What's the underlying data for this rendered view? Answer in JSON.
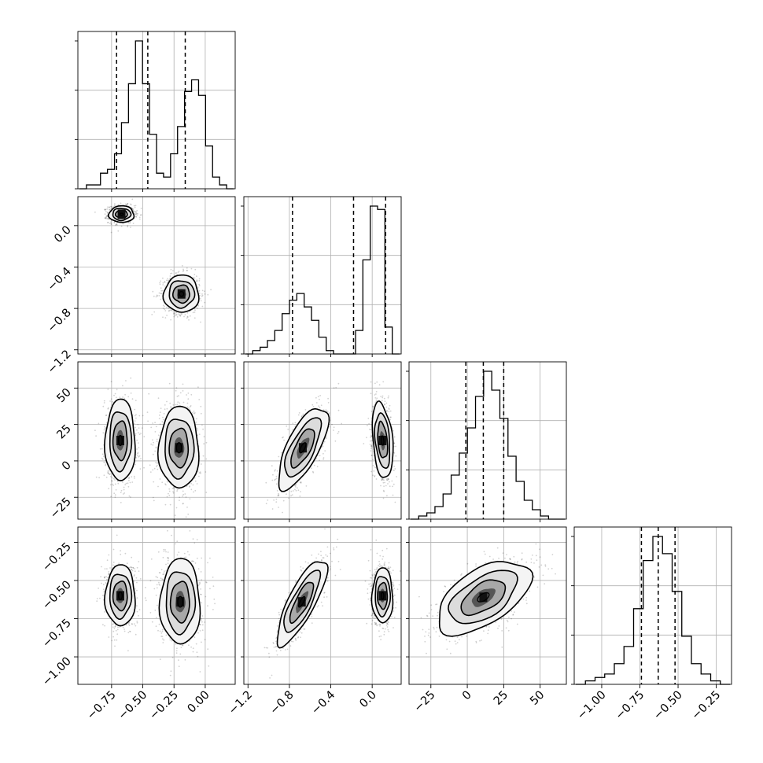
{
  "chart_data": {
    "type": "corner",
    "grid": true,
    "parameters": [
      {
        "ticks": [
          -0.75,
          -0.5,
          -0.25,
          0.0
        ],
        "tick_labels": [
          "−0.75",
          "−0.50",
          "−0.25",
          "0.00"
        ],
        "range": [
          -1.02,
          0.24
        ],
        "quantiles": [
          -0.71,
          -0.46,
          -0.16
        ],
        "hist_counts": [
          0,
          1,
          1,
          4,
          5,
          9,
          17,
          27,
          38,
          27,
          14,
          4,
          3,
          9,
          16,
          25,
          28,
          24,
          11,
          3,
          1,
          0
        ],
        "modes": [
          {
            "center": [
              -0.67,
              0.11
            ],
            "spread": [
              0.05,
              0.04
            ]
          },
          {
            "center": [
              -0.19,
              -0.66
            ],
            "spread": [
              0.07,
              0.09
            ]
          }
        ]
      },
      {
        "ticks": [
          -1.2,
          -0.8,
          -0.4,
          0.0
        ],
        "tick_labels": [
          "−1.2",
          "−0.8",
          "−0.4",
          "0.0"
        ],
        "range": [
          -1.24,
          0.28
        ],
        "quantiles": [
          -0.77,
          -0.18,
          0.13
        ],
        "hist_counts": [
          0,
          1,
          2,
          4,
          7,
          12,
          16,
          18,
          14,
          10,
          5,
          1,
          0,
          0,
          0,
          7,
          28,
          44,
          43,
          8,
          0
        ],
        "modes": [
          {
            "center": [
              -0.67,
              0.13
            ],
            "spread": [
              0.09,
              0.06
            ]
          },
          {
            "center": [
              0.1,
              0.11
            ],
            "spread": [
              0.05,
              0.11
            ]
          }
        ]
      },
      {
        "ticks": [
          -25,
          0,
          25,
          50
        ],
        "tick_labels": [
          "−25",
          "0",
          "25",
          "50"
        ],
        "range": [
          -40,
          68
        ],
        "quantiles": [
          -1,
          11,
          25
        ],
        "hist_counts": [
          0,
          1,
          2,
          4,
          8,
          14,
          21,
          29,
          39,
          47,
          41,
          32,
          20,
          12,
          6,
          3,
          1,
          0,
          0
        ],
        "modes": [
          {
            "center": [
              11,
              -0.6
            ],
            "spread": [
              14,
              0.08
            ]
          }
        ]
      },
      {
        "ticks": [
          -1.0,
          -0.75,
          -0.5,
          -0.25
        ],
        "tick_labels": [
          "−1.00",
          "−0.75",
          "−0.50",
          "−0.25"
        ],
        "range": [
          -1.18,
          -0.15
        ],
        "quantiles": [
          -0.74,
          -0.63,
          -0.52
        ],
        "hist_counts": [
          0,
          1,
          2,
          3,
          6,
          11,
          22,
          36,
          43,
          38,
          27,
          14,
          6,
          3,
          1,
          0
        ],
        "modes": []
      }
    ],
    "panel_modes": {
      "1-0": [
        {
          "center": [
            -0.67,
            0.11
          ],
          "sx": 0.05,
          "sy": 0.04,
          "rho": 0.0
        },
        {
          "center": [
            -0.19,
            -0.66
          ],
          "sx": 0.07,
          "sy": 0.09,
          "rho": 0.0
        }
      ],
      "2-0": [
        {
          "center": [
            -0.68,
            14
          ],
          "sx": 0.06,
          "sy": 14,
          "rho": 0.0
        },
        {
          "center": [
            -0.21,
            9
          ],
          "sx": 0.08,
          "sy": 14,
          "rho": 0.0
        }
      ],
      "2-1": [
        {
          "center": [
            -0.67,
            9
          ],
          "sx": 0.12,
          "sy": 14,
          "rho": 0.7
        },
        {
          "center": [
            0.1,
            14
          ],
          "sx": 0.05,
          "sy": 13,
          "rho": -0.3
        }
      ],
      "3-0": [
        {
          "center": [
            -0.68,
            -0.6
          ],
          "sx": 0.06,
          "sy": 0.1,
          "rho": 0.0
        },
        {
          "center": [
            -0.2,
            -0.64
          ],
          "sx": 0.08,
          "sy": 0.14,
          "rho": 0.0
        }
      ],
      "3-1": [
        {
          "center": [
            -0.68,
            -0.64
          ],
          "sx": 0.12,
          "sy": 0.14,
          "rho": 0.8
        },
        {
          "center": [
            0.1,
            -0.6
          ],
          "sx": 0.05,
          "sy": 0.09,
          "rho": 0.0
        }
      ],
      "3-2": [
        {
          "center": [
            11,
            -0.61
          ],
          "sx": 16,
          "sy": 0.12,
          "rho": 0.55
        }
      ]
    }
  }
}
